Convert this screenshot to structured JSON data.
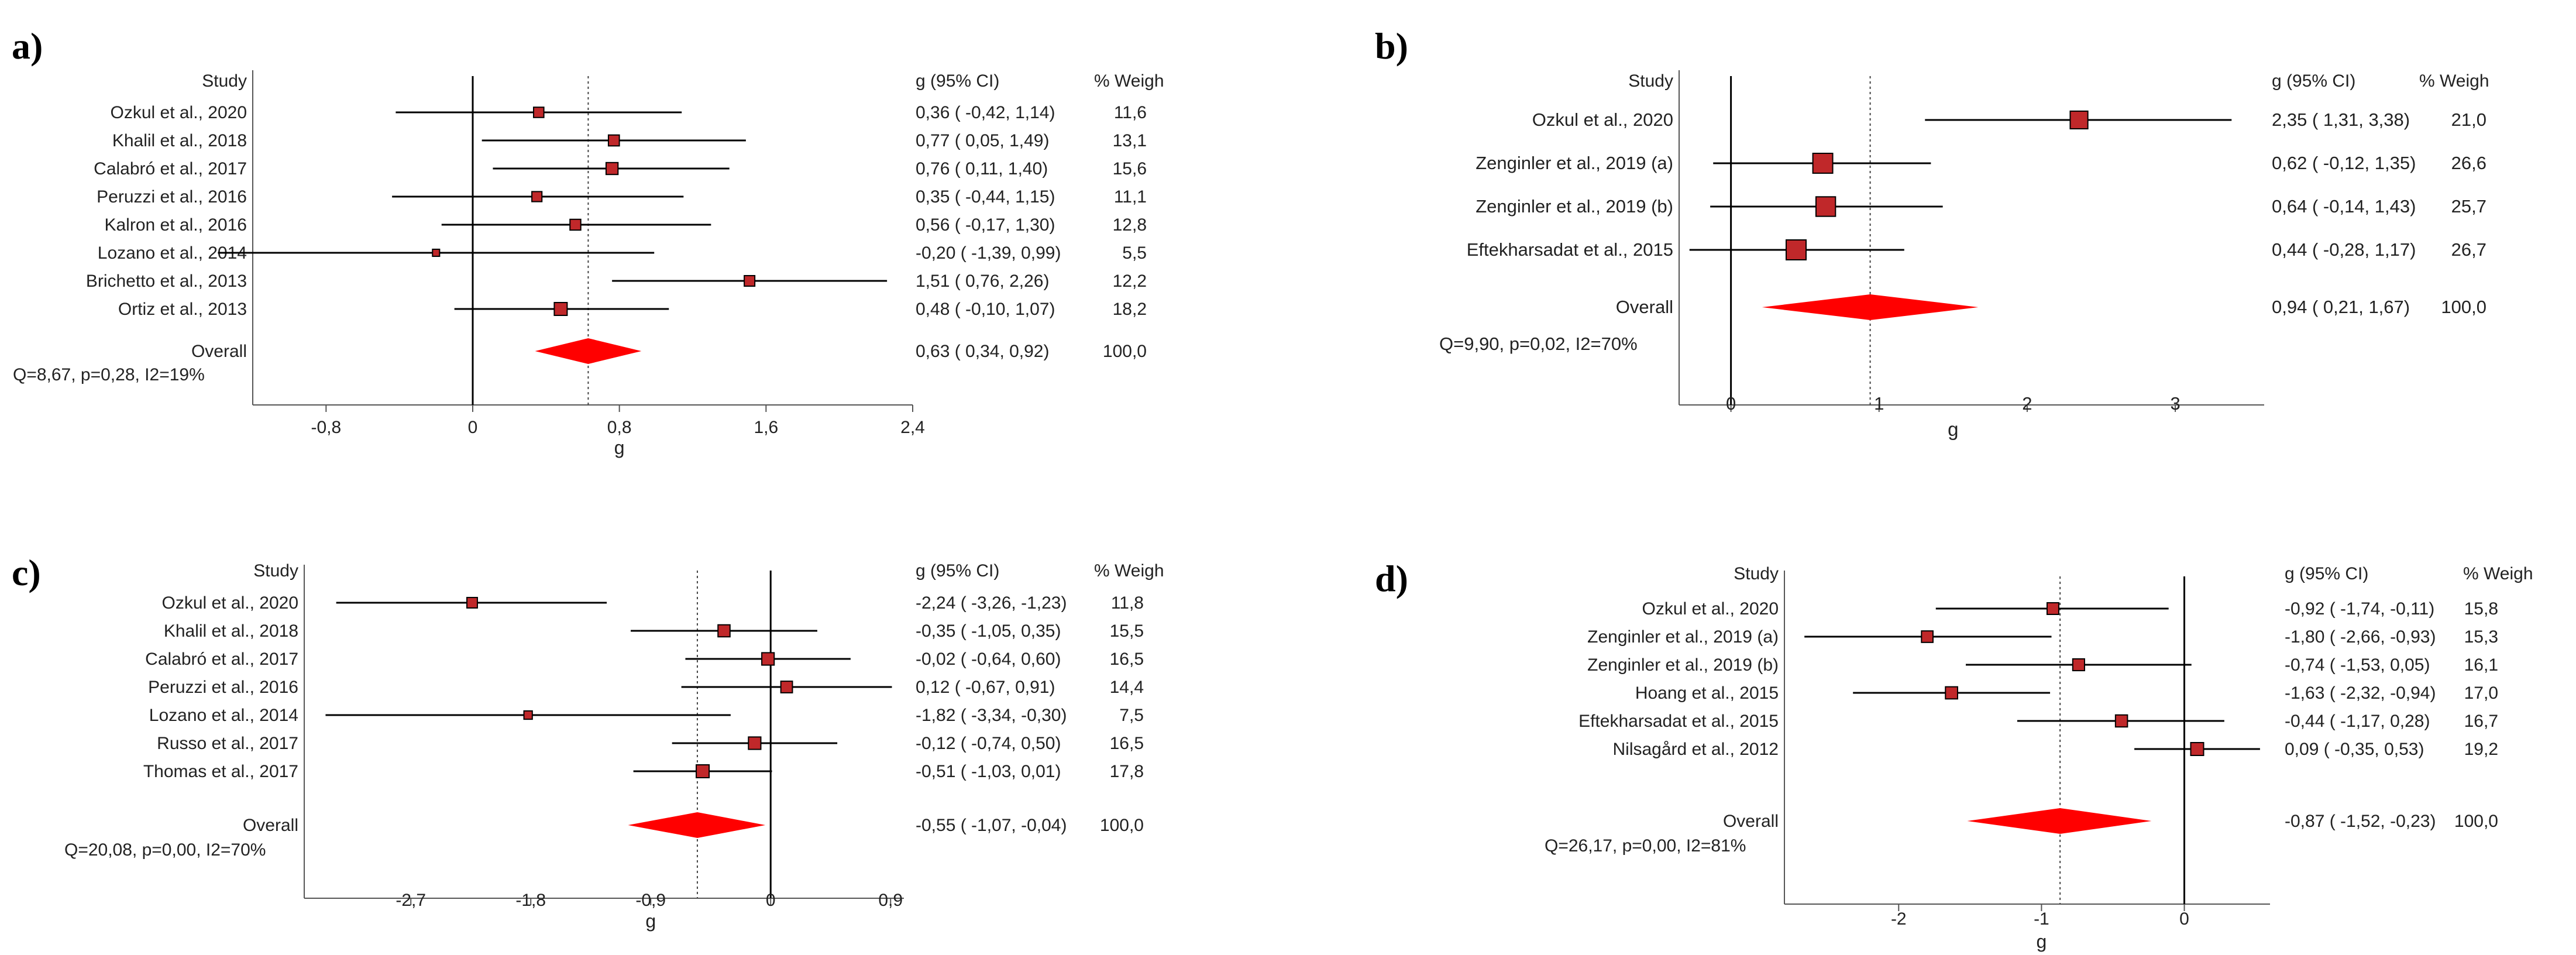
{
  "chart_data": [
    {
      "type": "forest",
      "panel_label": "a)",
      "header_study": "Study",
      "header_ci": "g (95% CI)",
      "header_weight": "% Weigh",
      "studies": [
        {
          "name": "Ozkul et al., 2020",
          "g": 0.36,
          "lo": -0.42,
          "hi": 1.14,
          "weight": 11.6,
          "ci_text": "0,36  ( -0,42,  1,14)",
          "weight_text": "11,6"
        },
        {
          "name": "Khalil et al., 2018",
          "g": 0.77,
          "lo": 0.05,
          "hi": 1.49,
          "weight": 13.1,
          "ci_text": "0,77  (  0,05,  1,49)",
          "weight_text": "13,1"
        },
        {
          "name": "Calabró et al., 2017",
          "g": 0.76,
          "lo": 0.11,
          "hi": 1.4,
          "weight": 15.6,
          "ci_text": "0,76  (  0,11,  1,40)",
          "weight_text": "15,6"
        },
        {
          "name": "Peruzzi et al., 2016",
          "g": 0.35,
          "lo": -0.44,
          "hi": 1.15,
          "weight": 11.1,
          "ci_text": "0,35  ( -0,44,  1,15)",
          "weight_text": "11,1"
        },
        {
          "name": "Kalron et al., 2016",
          "g": 0.56,
          "lo": -0.17,
          "hi": 1.3,
          "weight": 12.8,
          "ci_text": "0,56  ( -0,17,  1,30)",
          "weight_text": "12,8"
        },
        {
          "name": "Lozano et al., 2014",
          "g": -0.2,
          "lo": -1.39,
          "hi": 0.99,
          "weight": 5.5,
          "ci_text": "-0,20  ( -1,39,  0,99)",
          "weight_text": "5,5"
        },
        {
          "name": "Brichetto et al., 2013",
          "g": 1.51,
          "lo": 0.76,
          "hi": 2.26,
          "weight": 12.2,
          "ci_text": "1,51  (  0,76,  2,26)",
          "weight_text": "12,2"
        },
        {
          "name": "Ortiz et al., 2013",
          "g": 0.48,
          "lo": -0.1,
          "hi": 1.07,
          "weight": 18.2,
          "ci_text": "0,48  ( -0,10,  1,07)",
          "weight_text": "18,2"
        }
      ],
      "overall": {
        "name": "Overall",
        "g": 0.63,
        "lo": 0.34,
        "hi": 0.92,
        "ci_text": "0,63  (  0,34,  0,92)",
        "weight_text": "100,0"
      },
      "heterogeneity": "Q=8,67, p=0,28, I2=19%",
      "xlabel": "g",
      "xlim": [
        -1.2,
        2.4
      ],
      "xticks": [
        -0.8,
        0,
        0.8,
        1.6,
        2.4
      ],
      "xtick_labels": [
        "-0,8",
        "0",
        "0,8",
        "1,6",
        "2,4"
      ]
    },
    {
      "type": "forest",
      "panel_label": "b)",
      "header_study": "Study",
      "header_ci": "g (95% CI)",
      "header_weight": "% Weigh",
      "studies": [
        {
          "name": "Ozkul et al., 2020",
          "g": 2.35,
          "lo": 1.31,
          "hi": 3.38,
          "weight": 21.0,
          "ci_text": "2,35  (  1,31,  3,38)",
          "weight_text": "21,0"
        },
        {
          "name": "Zenginler et al., 2019 (a)",
          "g": 0.62,
          "lo": -0.12,
          "hi": 1.35,
          "weight": 26.6,
          "ci_text": "0,62  ( -0,12,  1,35)",
          "weight_text": "26,6"
        },
        {
          "name": "Zenginler et al., 2019 (b)",
          "g": 0.64,
          "lo": -0.14,
          "hi": 1.43,
          "weight": 25.7,
          "ci_text": "0,64  ( -0,14,  1,43)",
          "weight_text": "25,7"
        },
        {
          "name": "Eftekharsadat et al., 2015",
          "g": 0.44,
          "lo": -0.28,
          "hi": 1.17,
          "weight": 26.7,
          "ci_text": "0,44  ( -0,28,  1,17)",
          "weight_text": "26,7"
        }
      ],
      "overall": {
        "name": "Overall",
        "g": 0.94,
        "lo": 0.21,
        "hi": 1.67,
        "ci_text": "0,94  (  0,21,  1,67)",
        "weight_text": "100,0"
      },
      "heterogeneity": "Q=9,90, p=0,02, I2=70%",
      "xlabel": "g",
      "xlim": [
        -0.35,
        3.6
      ],
      "xticks": [
        0,
        1,
        2,
        3
      ],
      "xtick_labels": [
        "0",
        "1",
        "2",
        "3"
      ]
    },
    {
      "type": "forest",
      "panel_label": "c)",
      "header_study": "Study",
      "header_ci": "g (95% CI)",
      "header_weight": "% Weigh",
      "studies": [
        {
          "name": "Ozkul et al., 2020",
          "g": -2.24,
          "lo": -3.26,
          "hi": -1.23,
          "weight": 11.8,
          "ci_text": "-2,24  ( -3,26, -1,23)",
          "weight_text": "11,8"
        },
        {
          "name": "Khalil et al., 2018",
          "g": -0.35,
          "lo": -1.05,
          "hi": 0.35,
          "weight": 15.5,
          "ci_text": "-0,35  ( -1,05,  0,35)",
          "weight_text": "15,5"
        },
        {
          "name": "Calabró et al., 2017",
          "g": -0.02,
          "lo": -0.64,
          "hi": 0.6,
          "weight": 16.5,
          "ci_text": "-0,02  ( -0,64,  0,60)",
          "weight_text": "16,5"
        },
        {
          "name": "Peruzzi et al., 2016",
          "g": 0.12,
          "lo": -0.67,
          "hi": 0.91,
          "weight": 14.4,
          "ci_text": "0,12  ( -0,67,  0,91)",
          "weight_text": "14,4"
        },
        {
          "name": "Lozano et al., 2014",
          "g": -1.82,
          "lo": -3.34,
          "hi": -0.3,
          "weight": 7.5,
          "ci_text": "-1,82  ( -3,34, -0,30)",
          "weight_text": "7,5"
        },
        {
          "name": "Russo et al., 2017",
          "g": -0.12,
          "lo": -0.74,
          "hi": 0.5,
          "weight": 16.5,
          "ci_text": "-0,12  ( -0,74,  0,50)",
          "weight_text": "16,5"
        },
        {
          "name": "Thomas et al., 2017",
          "g": -0.51,
          "lo": -1.03,
          "hi": 0.01,
          "weight": 17.8,
          "ci_text": "-0,51  ( -1,03,  0,01)",
          "weight_text": "17,8"
        }
      ],
      "overall": {
        "name": "Overall",
        "g": -0.55,
        "lo": -1.07,
        "hi": -0.04,
        "ci_text": "-0,55  ( -1,07, -0,04)",
        "weight_text": "100,0"
      },
      "heterogeneity": "Q=20,08, p=0,00, I2=70%",
      "xlabel": "g",
      "xlim": [
        -3.5,
        1.0
      ],
      "xticks": [
        -2.7,
        -1.8,
        -0.9,
        0,
        0.9
      ],
      "xtick_labels": [
        "-2,7",
        "-1,8",
        "-0,9",
        "0",
        "0,9"
      ]
    },
    {
      "type": "forest",
      "panel_label": "d)",
      "header_study": "Study",
      "header_ci": "g (95% CI)",
      "header_weight": "% Weigh",
      "studies": [
        {
          "name": "Ozkul et al., 2020",
          "g": -0.92,
          "lo": -1.74,
          "hi": -0.11,
          "weight": 15.8,
          "ci_text": "-0,92  ( -1,74, -0,11)",
          "weight_text": "15,8"
        },
        {
          "name": "Zenginler et al., 2019 (a)",
          "g": -1.8,
          "lo": -2.66,
          "hi": -0.93,
          "weight": 15.3,
          "ci_text": "-1,80  ( -2,66, -0,93)",
          "weight_text": "15,3"
        },
        {
          "name": "Zenginler et al., 2019 (b)",
          "g": -0.74,
          "lo": -1.53,
          "hi": 0.05,
          "weight": 16.1,
          "ci_text": "-0,74  ( -1,53,  0,05)",
          "weight_text": "16,1"
        },
        {
          "name": "Hoang et al., 2015",
          "g": -1.63,
          "lo": -2.32,
          "hi": -0.94,
          "weight": 17.0,
          "ci_text": "-1,63  ( -2,32, -0,94)",
          "weight_text": "17,0"
        },
        {
          "name": "Eftekharsadat et al., 2015",
          "g": -0.44,
          "lo": -1.17,
          "hi": 0.28,
          "weight": 16.7,
          "ci_text": "-0,44  ( -1,17,  0,28)",
          "weight_text": "16,7"
        },
        {
          "name": "Nilsagård et al., 2012",
          "g": 0.09,
          "lo": -0.35,
          "hi": 0.53,
          "weight": 19.2,
          "ci_text": "0,09  ( -0,35,  0,53)",
          "weight_text": "19,2"
        }
      ],
      "overall": {
        "name": "Overall",
        "g": -0.87,
        "lo": -1.52,
        "hi": -0.23,
        "ci_text": "-0,87  ( -1,52, -0,23)",
        "weight_text": "100,0"
      },
      "heterogeneity": "Q=26,17, p=0,00, I2=81%",
      "xlabel": "g",
      "xlim": [
        -2.8,
        0.6
      ],
      "xticks": [
        -2,
        -1,
        0
      ],
      "xtick_labels": [
        "-2",
        "-1",
        "0"
      ]
    }
  ],
  "colors": {
    "marker_fill": "#c0282a",
    "diamond_fill": "#ff0000",
    "line": "#000000",
    "text": "#222222"
  }
}
